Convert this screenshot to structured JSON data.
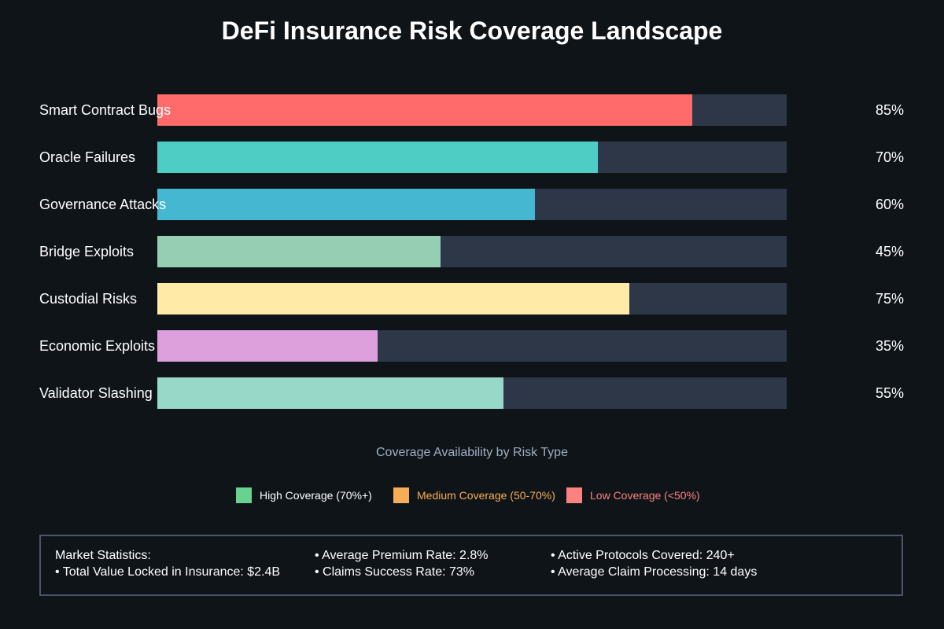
{
  "chart_data": {
    "type": "bar",
    "orientation": "horizontal",
    "title": "DeFi Insurance Risk Coverage Landscape",
    "xlabel": "Coverage Availability by Risk Type",
    "ylabel": "",
    "xlim": [
      0,
      100
    ],
    "value_suffix": "%",
    "categories": [
      "Smart Contract Bugs",
      "Oracle Failures",
      "Governance Attacks",
      "Bridge Exploits",
      "Custodial Risks",
      "Economic Exploits",
      "Validator Slashing"
    ],
    "values": [
      85,
      70,
      60,
      45,
      75,
      35,
      55
    ],
    "value_labels": [
      "85%",
      "70%",
      "60%",
      "45%",
      "75%",
      "35%",
      "55%"
    ],
    "bar_colors": [
      "#ff6b6b",
      "#4ecdc4",
      "#45b7d1",
      "#96ceb4",
      "#ffeaa7",
      "#dda0dd",
      "#98d8c8"
    ],
    "track_color": "#2d3748",
    "legend": [
      {
        "label": "High Coverage (70%+)",
        "color": "#68d391",
        "text_color": "#ffffff"
      },
      {
        "label": "Medium Coverage (50-70%)",
        "color": "#f6ad55",
        "text_color": "#f6ad55"
      },
      {
        "label": "Low Coverage (<50%)",
        "color": "#fc8181",
        "text_color": "#fc8181"
      }
    ]
  },
  "stats": {
    "heading": "Market Statistics:",
    "items": [
      "• Total Value Locked in Insurance: $2.4B",
      "• Average Premium Rate: 2.8%",
      "• Claims Success Rate: 73%",
      "• Active Protocols Covered: 240+",
      "• Average Claim Processing: 14 days"
    ]
  }
}
